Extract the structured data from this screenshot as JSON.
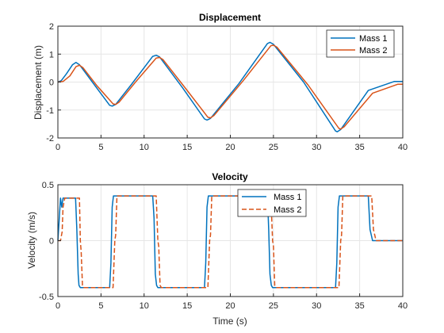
{
  "chart_data": [
    {
      "type": "line",
      "title": "Displacement",
      "xlabel": "",
      "ylabel": "Displacement (m)",
      "xlim": [
        0,
        40
      ],
      "ylim": [
        -2,
        2
      ],
      "xticks": [
        0,
        5,
        10,
        15,
        20,
        25,
        30,
        35,
        40
      ],
      "yticks": [
        -2,
        -1,
        0,
        1,
        2
      ],
      "grid": true,
      "legend_position": "top-right",
      "series": [
        {
          "name": "Mass 1",
          "color": "#0072BD",
          "dash": "solid",
          "x": [
            0,
            0.4,
            1.0,
            1.7,
            2.1,
            2.5,
            4.0,
            6.0,
            6.3,
            6.7,
            8.5,
            11.0,
            11.4,
            11.8,
            14.5,
            17.0,
            17.3,
            17.7,
            21.0,
            24.3,
            24.6,
            25.0,
            28.5,
            32.2,
            32.4,
            32.8,
            36.0,
            39.0,
            40.0
          ],
          "y": [
            0,
            0.05,
            0.3,
            0.62,
            0.7,
            0.62,
            0.0,
            -0.83,
            -0.86,
            -0.8,
            -0.1,
            0.92,
            0.96,
            0.9,
            -0.22,
            -1.32,
            -1.36,
            -1.3,
            -0.05,
            1.38,
            1.42,
            1.35,
            0.0,
            -1.75,
            -1.78,
            -1.7,
            -0.3,
            0.02,
            0.02
          ]
        },
        {
          "name": "Mass 2",
          "color": "#D95319",
          "dash": "solid",
          "x": [
            0,
            0.6,
            1.4,
            2.1,
            2.5,
            2.9,
            4.5,
            6.4,
            6.7,
            7.1,
            9.0,
            11.4,
            11.8,
            12.2,
            15.0,
            17.4,
            17.7,
            18.1,
            21.5,
            24.7,
            25.0,
            25.4,
            29.0,
            32.6,
            32.8,
            33.2,
            36.5,
            39.4,
            40.0
          ],
          "y": [
            0,
            0.02,
            0.22,
            0.55,
            0.6,
            0.52,
            -0.12,
            -0.78,
            -0.8,
            -0.72,
            0.0,
            0.86,
            0.88,
            0.8,
            -0.3,
            -1.26,
            -1.28,
            -1.2,
            0.05,
            1.3,
            1.32,
            1.25,
            -0.1,
            -1.66,
            -1.68,
            -1.6,
            -0.4,
            -0.08,
            -0.08
          ]
        }
      ]
    },
    {
      "type": "line",
      "title": "Velocity",
      "xlabel": "Time (s)",
      "ylabel": "Velocity (m/s)",
      "xlim": [
        0,
        40
      ],
      "ylim": [
        -0.5,
        0.5
      ],
      "xticks": [
        0,
        5,
        10,
        15,
        20,
        25,
        30,
        35,
        40
      ],
      "yticks": [
        -0.5,
        0,
        0.5
      ],
      "grid": true,
      "legend_position": "top-center",
      "series": [
        {
          "name": "Mass 1",
          "color": "#0072BD",
          "dash": "solid",
          "x": [
            0,
            0.15,
            0.3,
            0.45,
            0.6,
            0.8,
            2.05,
            2.2,
            2.35,
            2.45,
            2.6,
            6.0,
            6.15,
            6.3,
            6.45,
            6.6,
            11.0,
            11.15,
            11.3,
            11.45,
            11.6,
            17.0,
            17.15,
            17.3,
            17.45,
            17.6,
            24.3,
            24.45,
            24.6,
            24.75,
            24.9,
            32.2,
            32.35,
            32.5,
            32.65,
            32.8,
            36.0,
            36.2,
            36.5,
            40.0
          ],
          "y": [
            0,
            0.18,
            0.38,
            0.3,
            0.38,
            0.38,
            0.38,
            0.1,
            -0.3,
            -0.4,
            -0.42,
            -0.42,
            -0.2,
            0.3,
            0.4,
            0.4,
            0.4,
            0.2,
            -0.3,
            -0.4,
            -0.42,
            -0.42,
            -0.2,
            0.3,
            0.4,
            0.4,
            0.4,
            0.1,
            -0.3,
            -0.4,
            -0.42,
            -0.42,
            -0.2,
            0.3,
            0.4,
            0.4,
            0.4,
            0.1,
            0.0,
            0.0
          ]
        },
        {
          "name": "Mass 2",
          "color": "#D95319",
          "dash": "dashed",
          "x": [
            0,
            0.3,
            0.5,
            0.6,
            0.8,
            1.0,
            2.5,
            2.6,
            2.7,
            2.85,
            3.0,
            6.4,
            6.6,
            6.7,
            6.85,
            7.0,
            11.4,
            11.6,
            11.7,
            11.85,
            12.0,
            17.4,
            17.6,
            17.7,
            17.85,
            18.0,
            24.7,
            24.9,
            25.0,
            25.15,
            25.3,
            32.6,
            32.8,
            32.9,
            33.05,
            33.2,
            36.4,
            36.6,
            36.9,
            40.0
          ],
          "y": [
            0,
            0.0,
            0.08,
            0.3,
            0.38,
            0.38,
            0.38,
            0.0,
            -0.1,
            -0.4,
            -0.42,
            -0.42,
            0.0,
            0.05,
            0.4,
            0.4,
            0.4,
            0.0,
            -0.05,
            -0.4,
            -0.42,
            -0.42,
            0.0,
            0.05,
            0.4,
            0.4,
            0.4,
            0.0,
            -0.05,
            -0.4,
            -0.42,
            -0.42,
            0.0,
            0.05,
            0.4,
            0.4,
            0.4,
            0.1,
            0.0,
            0.0
          ]
        }
      ]
    }
  ]
}
